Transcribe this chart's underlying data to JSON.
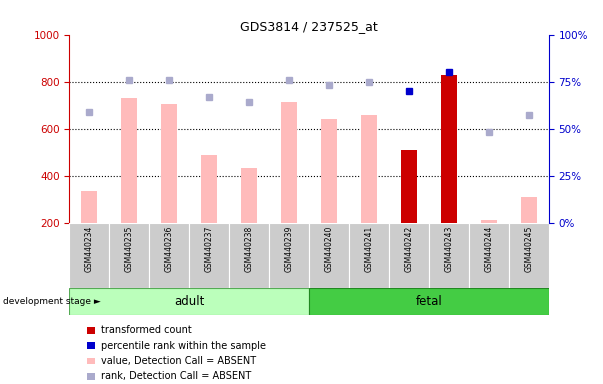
{
  "title": "GDS3814 / 237525_at",
  "samples": [
    "GSM440234",
    "GSM440235",
    "GSM440236",
    "GSM440237",
    "GSM440238",
    "GSM440239",
    "GSM440240",
    "GSM440241",
    "GSM440242",
    "GSM440243",
    "GSM440244",
    "GSM440245"
  ],
  "bar_values": [
    335,
    730,
    703,
    487,
    432,
    712,
    640,
    657,
    510,
    830,
    210,
    310
  ],
  "bar_colors": [
    "#ffbbbb",
    "#ffbbbb",
    "#ffbbbb",
    "#ffbbbb",
    "#ffbbbb",
    "#ffbbbb",
    "#ffbbbb",
    "#ffbbbb",
    "#cc0000",
    "#cc0000",
    "#ffbbbb",
    "#ffbbbb"
  ],
  "rank_values_pct": [
    59,
    76,
    76,
    67,
    64,
    76,
    73,
    75,
    70,
    80,
    48,
    57
  ],
  "rank_colors": [
    "#aaaacc",
    "#aaaacc",
    "#aaaacc",
    "#aaaacc",
    "#aaaacc",
    "#aaaacc",
    "#aaaacc",
    "#aaaacc",
    "#0000cc",
    "#0000cc",
    "#aaaacc",
    "#aaaacc"
  ],
  "ylim_left": [
    200,
    1000
  ],
  "ylim_right": [
    0,
    100
  ],
  "yticks_left": [
    200,
    400,
    600,
    800,
    1000
  ],
  "yticks_right": [
    0,
    25,
    50,
    75,
    100
  ],
  "adult_indices": [
    0,
    5
  ],
  "fetal_indices": [
    6,
    11
  ],
  "adult_color": "#bbffbb",
  "fetal_color": "#44cc44",
  "row_label": "development stage ►",
  "legend_items": [
    {
      "label": "transformed count",
      "color": "#cc0000"
    },
    {
      "label": "percentile rank within the sample",
      "color": "#0000cc"
    },
    {
      "label": "value, Detection Call = ABSENT",
      "color": "#ffbbbb"
    },
    {
      "label": "rank, Detection Call = ABSENT",
      "color": "#aaaacc"
    }
  ],
  "left_axis_color": "#cc0000",
  "right_axis_color": "#0000cc",
  "grid_yticks": [
    400,
    600,
    800
  ]
}
